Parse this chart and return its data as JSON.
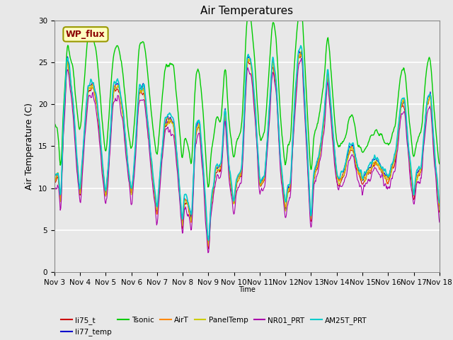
{
  "title": "Air Temperatures",
  "ylabel": "Air Temperature (C)",
  "xlabel": "Time",
  "ylim": [
    0,
    30
  ],
  "x_tick_labels": [
    "Nov 3",
    "Nov 4",
    "Nov 5",
    "Nov 6",
    "Nov 7",
    "Nov 8",
    "Nov 9",
    "Nov 10",
    "Nov 11",
    "Nov 12",
    "Nov 13",
    "Nov 14",
    "Nov 15",
    "Nov 16",
    "Nov 17",
    "Nov 18"
  ],
  "annotation_text": "WP_flux",
  "annotation_color": "#8B0000",
  "annotation_bg": "#FFFFC0",
  "annotation_border": "#999900",
  "bg_color": "#E8E8E8",
  "series": [
    {
      "label": "li75_t",
      "color": "#CC0000",
      "lw": 0.8
    },
    {
      "label": "li77_temp",
      "color": "#0000CC",
      "lw": 0.8
    },
    {
      "label": "Tsonic",
      "color": "#00CC00",
      "lw": 1.0
    },
    {
      "label": "AirT",
      "color": "#FF8800",
      "lw": 0.8
    },
    {
      "label": "PanelTemp",
      "color": "#CCCC00",
      "lw": 0.8
    },
    {
      "label": "NR01_PRT",
      "color": "#AA00AA",
      "lw": 0.8
    },
    {
      "label": "AM25T_PRT",
      "color": "#00CCCC",
      "lw": 1.2
    }
  ],
  "yticks": [
    0,
    5,
    10,
    15,
    20,
    25,
    30
  ],
  "grid_color": "white",
  "title_fontsize": 11,
  "label_fontsize": 9,
  "tick_fontsize": 7.5
}
